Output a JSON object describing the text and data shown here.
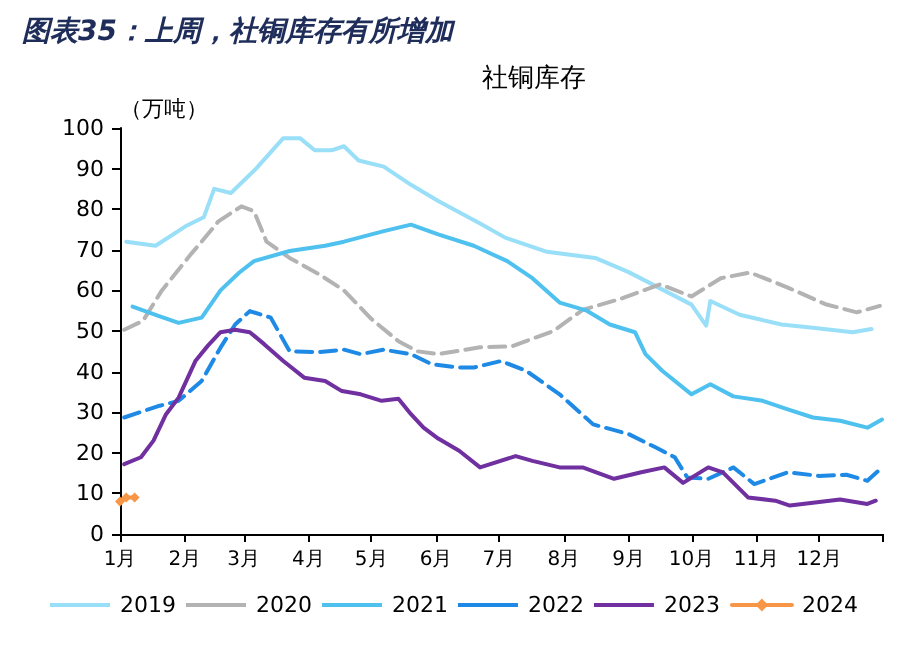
{
  "chart_data": {
    "type": "line",
    "title": "图表35：上周，社铜库存有所增加",
    "subtitle": "社铜库存",
    "ylabel": "（万吨）",
    "xlim": [
      "--01-01",
      "--12-31"
    ],
    "xticks": [
      {
        "value": "--01-01",
        "label": "1月"
      },
      {
        "value": "--02-01",
        "label": "2月"
      },
      {
        "value": "--03-01",
        "label": "3月"
      },
      {
        "value": "--04-01",
        "label": "4月"
      },
      {
        "value": "--05-01",
        "label": "5月"
      },
      {
        "value": "--06-01",
        "label": "6月"
      },
      {
        "value": "--07-01",
        "label": "7月"
      },
      {
        "value": "--08-01",
        "label": "8月"
      },
      {
        "value": "--09-01",
        "label": "9月"
      },
      {
        "value": "--10-01",
        "label": "10月"
      },
      {
        "value": "--11-01",
        "label": "11月"
      },
      {
        "value": "--12-01",
        "label": "12月"
      },
      {
        "value": "--12-31",
        "label": null
      }
    ],
    "ylim": [
      0,
      100
    ],
    "yticks": [
      0,
      10,
      20,
      30,
      40,
      50,
      60,
      70,
      80,
      90,
      100
    ],
    "grid": false,
    "legend": "bottom",
    "marker": "none",
    "series": [
      {
        "name": "2019",
        "color": "#99dff8",
        "line_style": "solid",
        "x": [
          "--01-04",
          "--01-18",
          "--02-02",
          "--02-10",
          "--02-15",
          "--02-23",
          "--03-07",
          "--03-20",
          "--03-28",
          "--04-04",
          "--04-12",
          "--04-18",
          "--04-25",
          "--05-07",
          "--05-20",
          "--06-02",
          "--06-22",
          "--07-04",
          "--07-24",
          "--08-16",
          "--09-01",
          "--09-16",
          "--10-01",
          "--10-08",
          "--10-10",
          "--10-24",
          "--11-13",
          "--11-28",
          "--12-17",
          "--12-26"
        ],
        "values": [
          72,
          71,
          76,
          78,
          85,
          84,
          90,
          97.5,
          97.5,
          94.5,
          94.5,
          95.5,
          92,
          90.5,
          86,
          82,
          76.5,
          73,
          69.5,
          68,
          64.5,
          60.5,
          56.5,
          51.3,
          57.4,
          54,
          51.6,
          50.8,
          49.7,
          50.5
        ]
      },
      {
        "name": "2020",
        "color": "#b3b3b3",
        "line_style": "dashed",
        "x": [
          "--01-03",
          "--01-12",
          "--01-21",
          "--02-04",
          "--02-09",
          "--02-17",
          "--02-28",
          "--03-06",
          "--03-12",
          "--03-23",
          "--04-06",
          "--04-18",
          "--05-01",
          "--05-14",
          "--05-23",
          "--06-02",
          "--06-22",
          "--07-07",
          "--07-27",
          "--08-10",
          "--08-28",
          "--09-16",
          "--10-01",
          "--10-15",
          "--10-29",
          "--11-16",
          "--12-04",
          "--12-19",
          "--12-30"
        ],
        "values": [
          50.3,
          52.5,
          60,
          69,
          72,
          77,
          80.7,
          79.5,
          72,
          68,
          64,
          60,
          53,
          47.5,
          45,
          44.3,
          46,
          46.2,
          50,
          55.2,
          57.9,
          61.5,
          58.5,
          63,
          64.4,
          60.7,
          56.6,
          54.6,
          56.2
        ]
      },
      {
        "name": "2021",
        "color": "#4fc1ef",
        "line_style": "solid",
        "x": [
          "--01-07",
          "--01-20",
          "--01-29",
          "--02-09",
          "--02-18",
          "--02-27",
          "--03-06",
          "--03-23",
          "--04-09",
          "--04-18",
          "--05-07",
          "--05-20",
          "--06-02",
          "--06-19",
          "--07-05",
          "--07-17",
          "--07-30",
          "--08-12",
          "--08-23",
          "--09-04",
          "--09-09",
          "--09-17",
          "--10-01",
          "--10-10",
          "--10-21",
          "--11-04",
          "--11-16",
          "--11-28",
          "--12-11",
          "--12-24",
          "--12-31"
        ],
        "values": [
          56,
          53.6,
          52,
          53.3,
          60,
          64.4,
          67.2,
          69.7,
          71,
          72,
          74.6,
          76.2,
          73.8,
          71,
          67.2,
          63,
          57,
          55,
          51.6,
          49.7,
          44.3,
          40.2,
          34.4,
          36.9,
          33.9,
          32.8,
          30.7,
          28.7,
          27.9,
          26.2,
          28.2
        ]
      },
      {
        "name": "2022",
        "color": "#1f8ae6",
        "line_style": "dashed",
        "x": [
          "--01-03",
          "--01-20",
          "--01-29",
          "--02-09",
          "--02-18",
          "--02-25",
          "--03-04",
          "--03-14",
          "--03-23",
          "--04-06",
          "--04-18",
          "--04-26",
          "--05-07",
          "--05-20",
          "--05-30",
          "--06-12",
          "--06-19",
          "--07-02",
          "--07-14",
          "--07-30",
          "--08-15",
          "--09-01",
          "--09-14",
          "--09-23",
          "--09-29",
          "--10-09",
          "--10-21",
          "--10-31",
          "--11-16",
          "--12-01",
          "--12-14",
          "--12-24",
          "--12-30"
        ],
        "values": [
          28.7,
          31.6,
          32.8,
          37.7,
          45.9,
          51.6,
          54.9,
          53.3,
          45,
          44.8,
          45.4,
          44.3,
          45.4,
          44.3,
          41.8,
          41,
          41,
          42.6,
          40.2,
          34.4,
          27,
          24.6,
          21.3,
          18.9,
          13.9,
          13.6,
          16.4,
          12.3,
          15.2,
          14.3,
          14.6,
          13.1,
          15.9
        ]
      },
      {
        "name": "2023",
        "color": "#7030a0",
        "line_style": "solid",
        "x": [
          "--01-03",
          "--01-11",
          "--01-17",
          "--01-23",
          "--01-29",
          "--02-06",
          "--02-12",
          "--02-18",
          "--02-25",
          "--03-04",
          "--03-11",
          "--03-20",
          "--03-30",
          "--04-09",
          "--04-17",
          "--04-26",
          "--05-06",
          "--05-14",
          "--05-20",
          "--05-26",
          "--06-02",
          "--06-12",
          "--06-22",
          "--07-09",
          "--07-17",
          "--07-30",
          "--08-10",
          "--08-25",
          "--09-07",
          "--09-18",
          "--09-27",
          "--10-09",
          "--10-16",
          "--10-28",
          "--11-10",
          "--11-17",
          "--11-28",
          "--12-11",
          "--12-24",
          "--12-28"
        ],
        "values": [
          17.2,
          18.9,
          23,
          29.5,
          33.6,
          42.6,
          46.4,
          49.7,
          50.3,
          49.7,
          46.7,
          42.6,
          38.5,
          37.7,
          35.2,
          34.4,
          32.8,
          33.3,
          29.5,
          26.2,
          23.5,
          20.5,
          16.4,
          19.2,
          18,
          16.4,
          16.4,
          13.6,
          15.2,
          16.4,
          12.6,
          16.4,
          15.2,
          9,
          8.2,
          7,
          7.7,
          8.5,
          7.4,
          8.2
        ]
      },
      {
        "name": "2024",
        "color": "#f79646",
        "line_style": "solid",
        "marker": "diamond",
        "x": [
          "--01-01",
          "--01-04",
          "--01-08"
        ],
        "values": [
          8,
          9,
          9
        ]
      }
    ]
  }
}
